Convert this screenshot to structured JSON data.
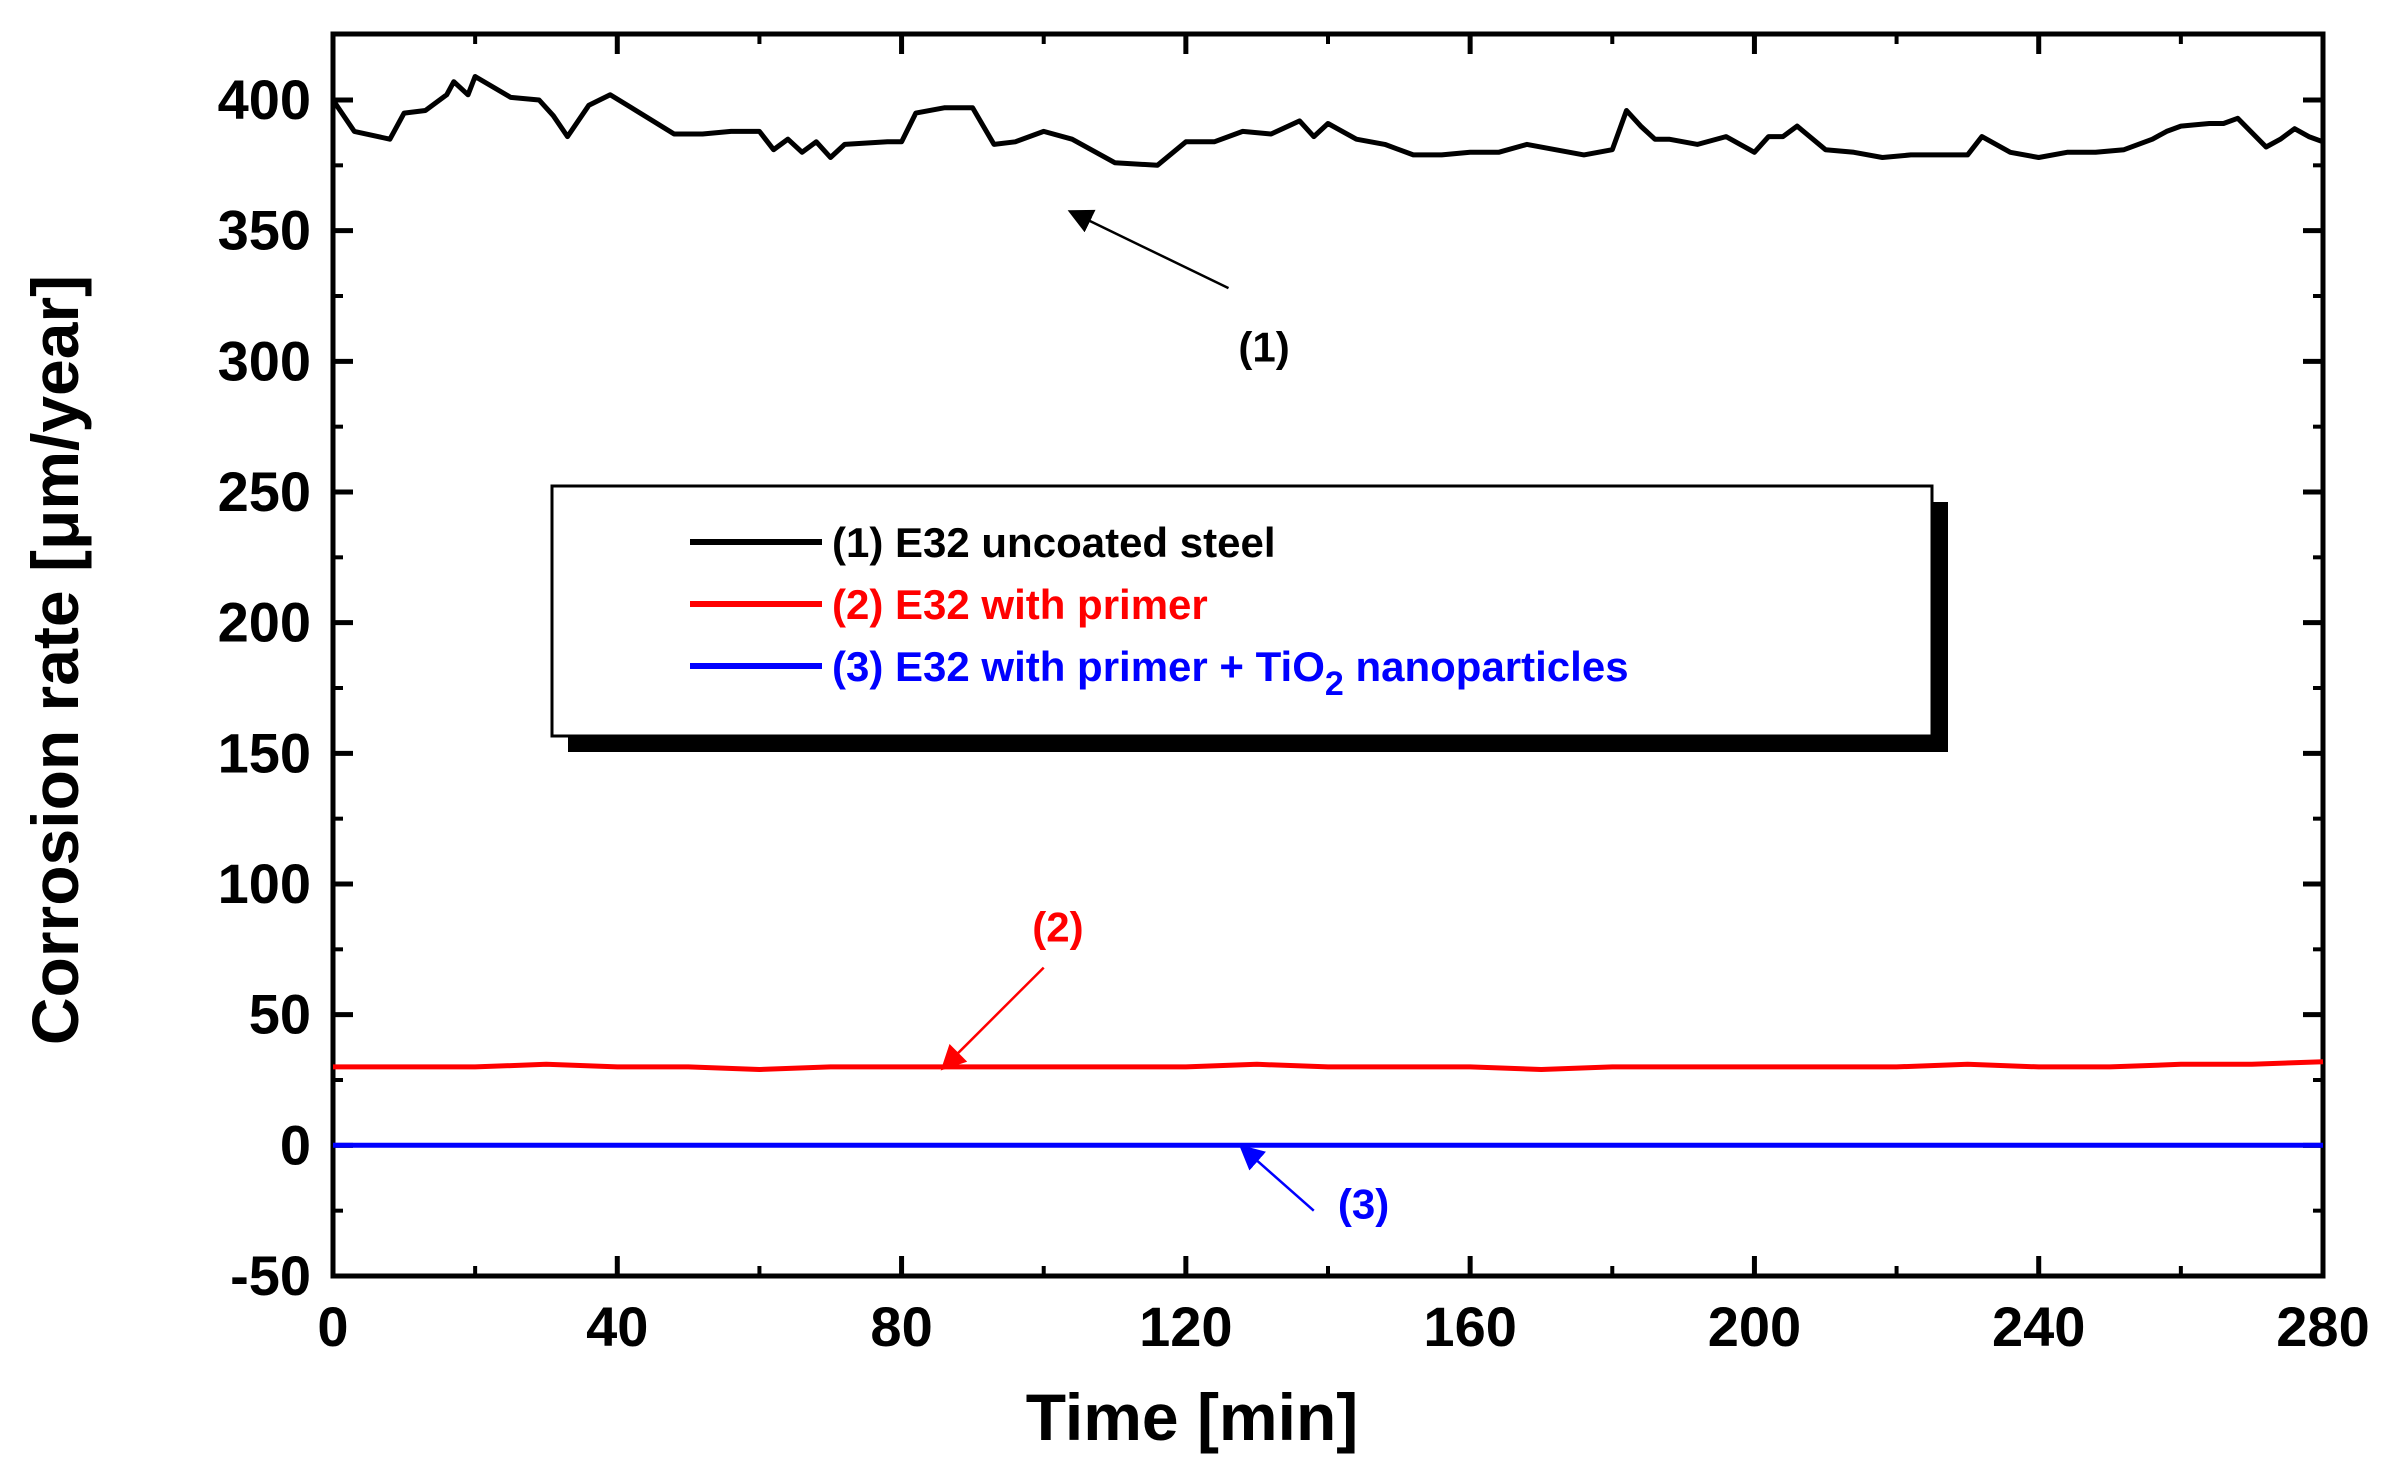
{
  "chart_data": {
    "type": "line",
    "title": "",
    "xlabel": "Time [min]",
    "ylabel": "Corrosion rate [μm/year]",
    "xlim": [
      0,
      280
    ],
    "ylim": [
      -50,
      420
    ],
    "xticks": [
      0,
      40,
      80,
      120,
      160,
      200,
      240,
      280
    ],
    "yticks": [
      -50,
      0,
      50,
      100,
      150,
      200,
      250,
      300,
      350,
      400
    ],
    "grid": false,
    "legend_position": "center",
    "series": [
      {
        "name": "(1) E32 uncoated steel",
        "label_prefix": "(1) E32 uncoated steel",
        "color": "#000000",
        "x": [
          0,
          3,
          8,
          10,
          13,
          16,
          17,
          19,
          20,
          25,
          29,
          31,
          33,
          36,
          39,
          42,
          45,
          48,
          52,
          56,
          60,
          62,
          64,
          66,
          68,
          70,
          72,
          78,
          80,
          82,
          86,
          90,
          93,
          96,
          100,
          104,
          110,
          116,
          120,
          124,
          128,
          132,
          136,
          138,
          140,
          144,
          148,
          152,
          156,
          160,
          164,
          168,
          172,
          176,
          180,
          182,
          184,
          186,
          188,
          192,
          196,
          200,
          202,
          204,
          206,
          210,
          214,
          218,
          222,
          226,
          230,
          232,
          236,
          240,
          244,
          248,
          252,
          256,
          258,
          260,
          264,
          266,
          268,
          272,
          274,
          276,
          278,
          280
        ],
        "values": [
          400,
          388,
          385,
          395,
          396,
          402,
          407,
          402,
          409,
          401,
          400,
          394,
          386,
          398,
          402,
          397,
          392,
          387,
          387,
          388,
          388,
          381,
          385,
          380,
          384,
          378,
          383,
          384,
          384,
          395,
          397,
          397,
          383,
          384,
          388,
          385,
          376,
          375,
          384,
          384,
          388,
          387,
          392,
          386,
          391,
          385,
          383,
          379,
          379,
          380,
          380,
          383,
          381,
          379,
          381,
          396,
          390,
          385,
          385,
          383,
          386,
          380,
          386,
          386,
          390,
          381,
          380,
          378,
          379,
          379,
          379,
          386,
          380,
          378,
          380,
          380,
          381,
          385,
          388,
          390,
          391,
          391,
          393,
          382,
          385,
          389,
          386,
          384
        ],
        "annotation": "(1)"
      },
      {
        "name": "(2) E32 with  primer",
        "color": "#ff0000",
        "x": [
          0,
          10,
          20,
          30,
          40,
          50,
          60,
          70,
          80,
          90,
          100,
          110,
          120,
          130,
          140,
          150,
          160,
          170,
          180,
          190,
          200,
          210,
          220,
          230,
          240,
          250,
          260,
          270,
          280
        ],
        "values": [
          30,
          30,
          30,
          31,
          30,
          30,
          29,
          30,
          30,
          30,
          30,
          30,
          30,
          31,
          30,
          30,
          30,
          29,
          30,
          30,
          30,
          30,
          30,
          31,
          30,
          30,
          31,
          31,
          32
        ],
        "annotation": "(2)"
      },
      {
        "name": "(3) E32 with  primer + TiO2 nanoparticles",
        "color": "#0000ff",
        "x": [
          0,
          40,
          80,
          120,
          160,
          200,
          240,
          280
        ],
        "values": [
          0,
          0,
          0,
          0,
          0,
          0,
          0,
          0
        ],
        "annotation": "(3)"
      }
    ],
    "legend": {
      "entries": [
        {
          "prefix": "(1) E32 uncoated steel",
          "sub": "",
          "suffix": ""
        },
        {
          "prefix": "(2) E32 with  primer",
          "sub": "",
          "suffix": ""
        },
        {
          "prefix": "(3) E32 with  primer + TiO",
          "sub": "2",
          "suffix": " nanoparticles"
        }
      ]
    }
  }
}
